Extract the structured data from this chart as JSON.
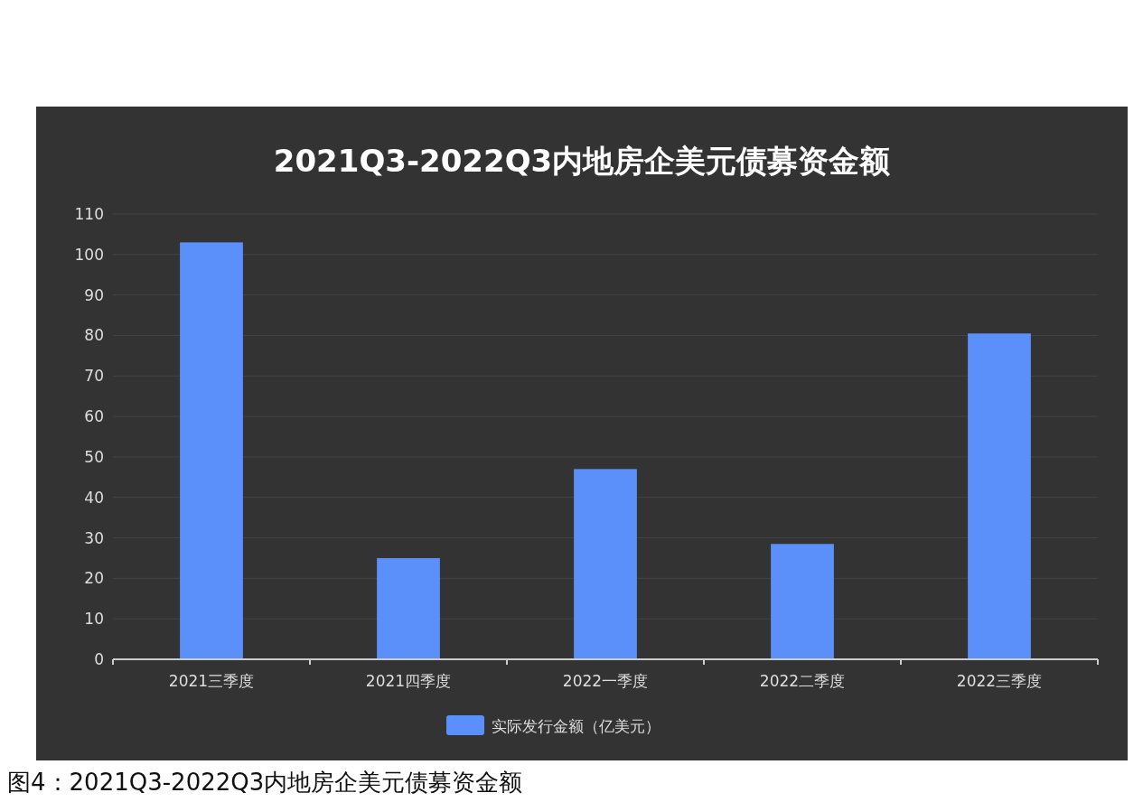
{
  "chart_data": {
    "type": "bar",
    "title": "2021Q3-2022Q3内地房企美元债募资金额",
    "categories": [
      "2021三季度",
      "2021四季度",
      "2022一季度",
      "2022二季度",
      "2022三季度"
    ],
    "series": [
      {
        "name": "实际发行金额（亿美元）",
        "color": "#5b8ff9",
        "values": [
          103,
          25,
          47,
          28.5,
          80.5
        ]
      }
    ],
    "ylim": [
      0,
      110
    ],
    "yticks": [
      0,
      10,
      20,
      30,
      40,
      50,
      60,
      70,
      80,
      90,
      100,
      110
    ],
    "grid": "y",
    "legend": "bottom",
    "annotations": [
      "图4：2021Q3-2022Q3内地房企美元债募资金额"
    ]
  }
}
